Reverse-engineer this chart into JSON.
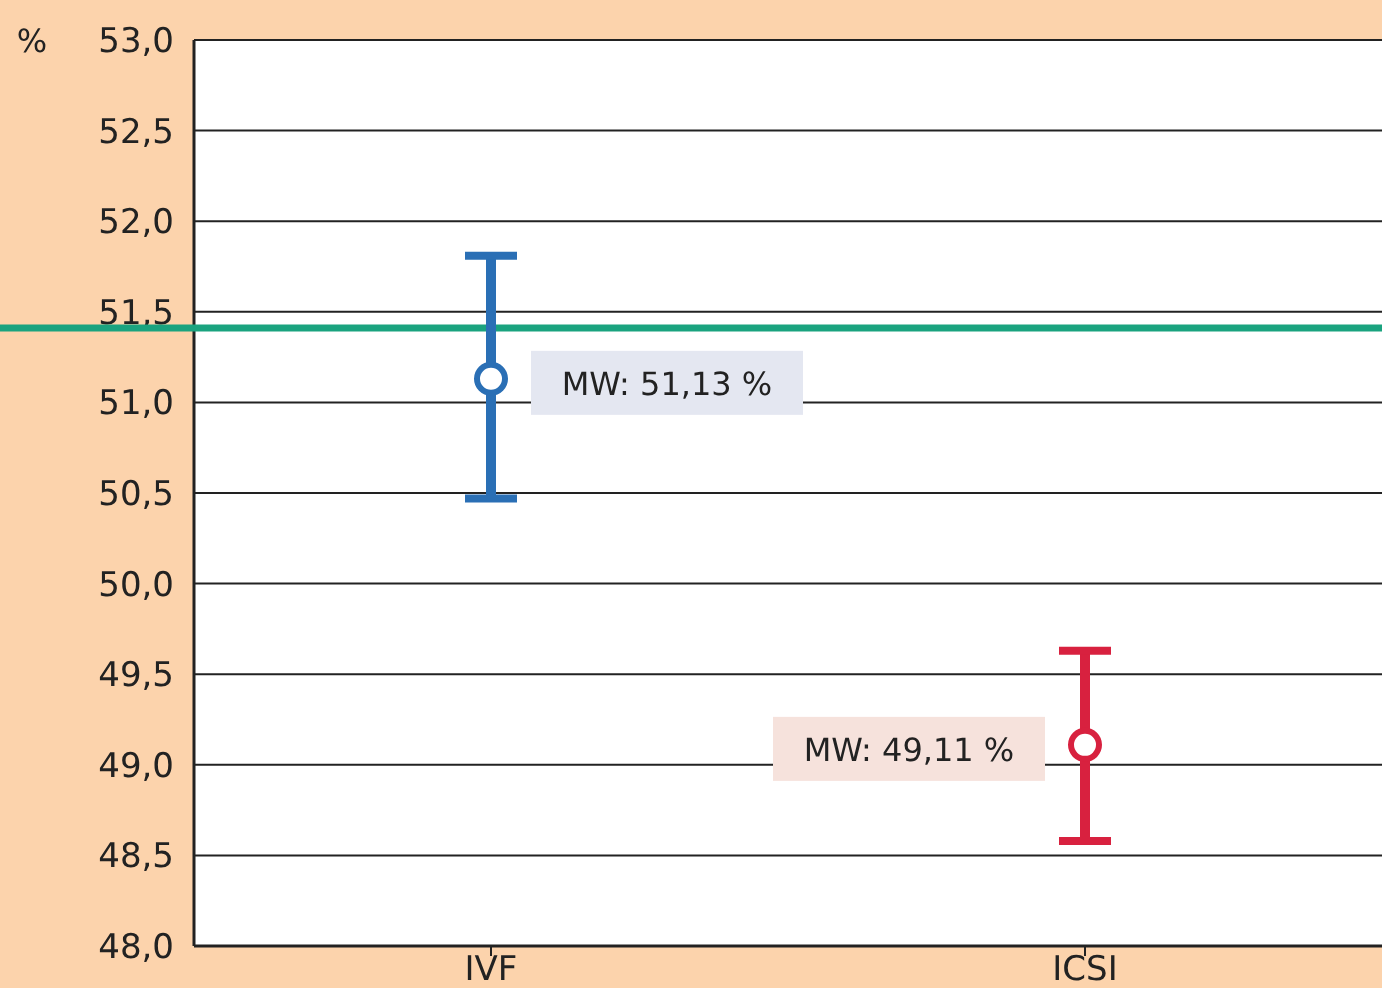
{
  "chart_data": {
    "type": "scatter",
    "ylabel": "%",
    "categories": [
      "IVF",
      "ICSI"
    ],
    "values": [
      51.13,
      49.11
    ],
    "colors": [
      "#2a6fb5",
      "#d8213f"
    ],
    "errors": [
      [
        50.47,
        51.81
      ],
      [
        48.58,
        49.63
      ]
    ],
    "value_labels": [
      "MW: 51,13 %",
      "MW: 49,11 %"
    ],
    "marker": "circle",
    "ylim": [
      48,
      53
    ],
    "yticks": [
      {
        "value": 48,
        "label": "48,0"
      },
      {
        "value": 48.5,
        "label": "48,5"
      },
      {
        "value": 49,
        "label": "49,0"
      },
      {
        "value": 49.5,
        "label": "49,5"
      },
      {
        "value": 50,
        "label": "50,0"
      },
      {
        "value": 50.5,
        "label": "50,5"
      },
      {
        "value": 51,
        "label": "51,0"
      },
      {
        "value": 51.5,
        "label": "51,5"
      },
      {
        "value": 52,
        "label": "52,0"
      },
      {
        "value": 52.5,
        "label": "52,5"
      },
      {
        "value": 53,
        "label": "53,0"
      }
    ],
    "grid": "y",
    "ref_lines": [
      {
        "axis": "y",
        "value": 51.41,
        "color": "#1aa37f"
      }
    ]
  }
}
